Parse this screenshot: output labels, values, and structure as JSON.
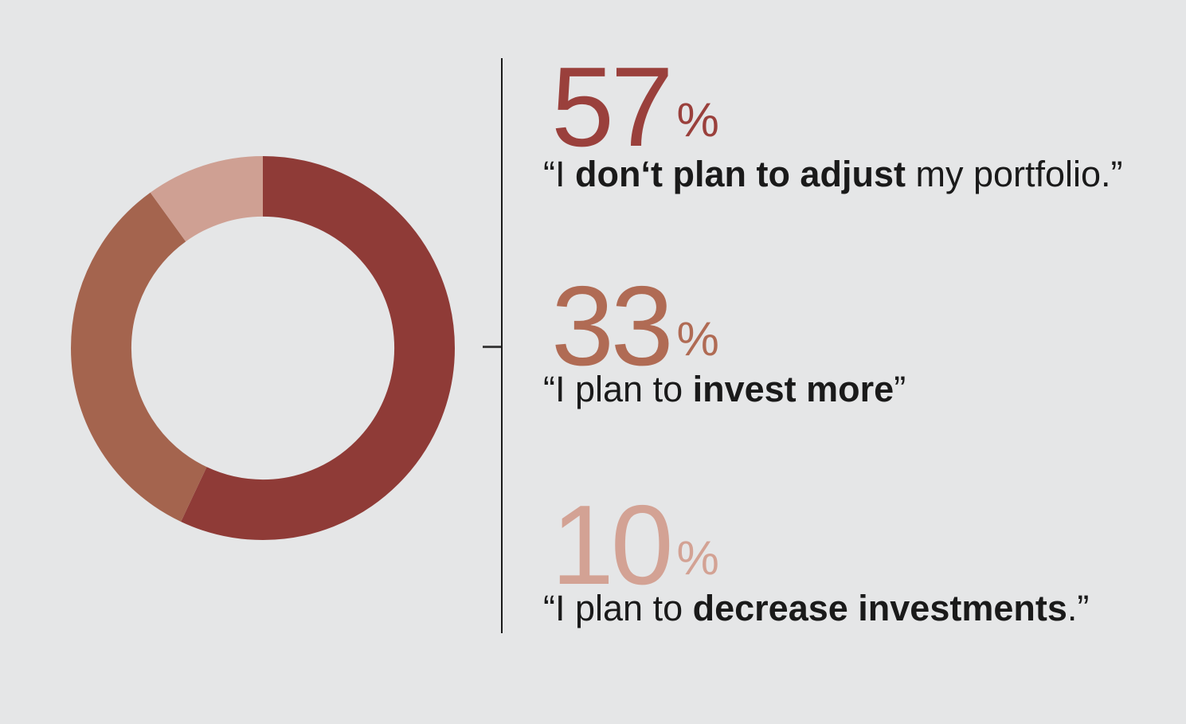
{
  "background_color": "#e5e6e7",
  "divider": {
    "line_color": "#1a1a1a",
    "tick_color": "#3d3d3d"
  },
  "chart_data": {
    "type": "pie",
    "donut": true,
    "title": "",
    "unit": "%",
    "values": [
      57,
      33,
      10
    ],
    "labels": [
      "I don‘t plan to adjust my portfolio.",
      "I plan to invest more",
      "I plan to decrease investments."
    ],
    "colors": [
      "#8f3b37",
      "#a4644e",
      "#cfa093"
    ],
    "start_angle": "top",
    "direction": "clockwise",
    "inner_radius_ratio": 0.685,
    "legend_position": "right"
  },
  "stats": [
    {
      "value": "57",
      "percent_sign": "%",
      "color": "#9a403c",
      "caption": {
        "pre": "“I ",
        "bold": "don‘t plan to adjust",
        "post": " my portfolio.”"
      }
    },
    {
      "value": "33",
      "percent_sign": "%",
      "color": "#b06b54",
      "caption": {
        "pre": "“I plan to ",
        "bold": "invest more",
        "post": "”"
      }
    },
    {
      "value": "10",
      "percent_sign": "%",
      "color": "#d3a294",
      "caption": {
        "pre": "“I plan to ",
        "bold": "decrease investments",
        "post": ".”"
      }
    }
  ]
}
